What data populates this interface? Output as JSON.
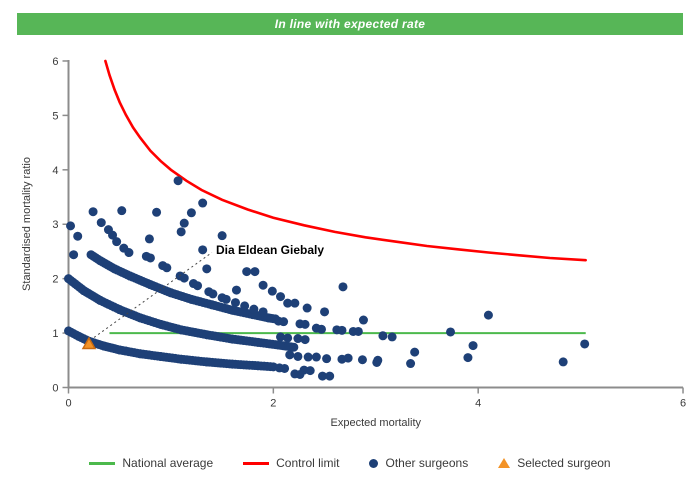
{
  "banner": {
    "text": "In line with expected rate",
    "bg_color": "#57B657"
  },
  "legend": {
    "items": [
      {
        "label": "National average",
        "swatch": "line",
        "color": "#4CB94C"
      },
      {
        "label": "Control limit",
        "swatch": "line",
        "color": "#FF0000"
      },
      {
        "label": "Other surgeons",
        "swatch": "dot",
        "color": "#1E4077"
      },
      {
        "label": "Selected surgeon",
        "swatch": "triangle",
        "color": "#F39327"
      }
    ]
  },
  "chart_data": {
    "type": "scatter",
    "title": "In line with expected rate",
    "xlabel": "Expected mortality",
    "ylabel": "Standardised mortality ratio",
    "xlim": [
      0,
      6
    ],
    "ylim": [
      0,
      6
    ],
    "xticks": [
      0,
      2,
      4,
      6
    ],
    "yticks": [
      0,
      1,
      2,
      3,
      4,
      5,
      6
    ],
    "grid": false,
    "axis_color": "#8C8C8C",
    "national_average": {
      "label": "National average",
      "y": 1,
      "x_start": 0.4,
      "x_end": 5.05,
      "color": "#4CB94C"
    },
    "control_limit": {
      "label": "Control limit",
      "color": "#FF0000",
      "points": [
        [
          0.36,
          6.0
        ],
        [
          0.4,
          5.74
        ],
        [
          0.45,
          5.47
        ],
        [
          0.5,
          5.24
        ],
        [
          0.56,
          5.01
        ],
        [
          0.63,
          4.78
        ],
        [
          0.7,
          4.59
        ],
        [
          0.8,
          4.35
        ],
        [
          0.9,
          4.16
        ],
        [
          1.0,
          4.0
        ],
        [
          1.15,
          3.8
        ],
        [
          1.3,
          3.63
        ],
        [
          1.5,
          3.45
        ],
        [
          1.75,
          3.27
        ],
        [
          2.0,
          3.12
        ],
        [
          2.3,
          2.98
        ],
        [
          2.6,
          2.86
        ],
        [
          2.9,
          2.76
        ],
        [
          3.2,
          2.68
        ],
        [
          3.5,
          2.6
        ],
        [
          3.8,
          2.54
        ],
        [
          4.1,
          2.48
        ],
        [
          4.4,
          2.43
        ],
        [
          4.7,
          2.38
        ],
        [
          5.05,
          2.34
        ]
      ]
    },
    "other_surgeons": {
      "label": "Other surgeons",
      "color": "#1E4077",
      "bands": [
        {
          "name": "band-1",
          "points": [
            [
              0.0,
              1.04
            ],
            [
              0.1,
              0.94
            ],
            [
              0.2,
              0.85
            ],
            [
              0.35,
              0.76
            ],
            [
              0.5,
              0.69
            ],
            [
              0.7,
              0.62
            ],
            [
              0.9,
              0.57
            ],
            [
              1.1,
              0.52
            ],
            [
              1.35,
              0.47
            ],
            [
              1.6,
              0.43
            ],
            [
              1.85,
              0.4
            ],
            [
              2.0,
              0.38
            ]
          ]
        },
        {
          "name": "band-2",
          "points": [
            [
              0.0,
              2.0
            ],
            [
              0.15,
              1.78
            ],
            [
              0.31,
              1.6
            ],
            [
              0.5,
              1.43
            ],
            [
              0.7,
              1.28
            ],
            [
              0.9,
              1.16
            ],
            [
              1.1,
              1.06
            ],
            [
              1.35,
              0.97
            ],
            [
              1.6,
              0.89
            ],
            [
              1.85,
              0.83
            ],
            [
              2.05,
              0.78
            ],
            [
              2.2,
              0.74
            ]
          ]
        },
        {
          "name": "band-3",
          "points": [
            [
              0.22,
              2.44
            ],
            [
              0.31,
              2.33
            ],
            [
              0.45,
              2.18
            ],
            [
              0.6,
              2.05
            ],
            [
              0.8,
              1.89
            ],
            [
              1.0,
              1.74
            ],
            [
              1.2,
              1.62
            ],
            [
              1.4,
              1.52
            ],
            [
              1.6,
              1.42
            ],
            [
              1.8,
              1.34
            ],
            [
              1.95,
              1.28
            ],
            [
              2.02,
              1.26
            ]
          ]
        }
      ],
      "dashed_band": [
        [
          0.39,
          2.9
        ],
        [
          0.43,
          2.8
        ],
        [
          0.47,
          2.68
        ],
        [
          0.54,
          2.56
        ],
        [
          0.59,
          2.48
        ],
        [
          0.76,
          2.41
        ],
        [
          0.8,
          2.38
        ],
        [
          0.92,
          2.24
        ],
        [
          0.96,
          2.2
        ],
        [
          1.09,
          2.05
        ],
        [
          1.13,
          2.01
        ],
        [
          1.22,
          1.91
        ],
        [
          1.26,
          1.87
        ],
        [
          1.37,
          1.76
        ],
        [
          1.41,
          1.72
        ],
        [
          1.5,
          1.65
        ],
        [
          1.54,
          1.62
        ],
        [
          1.63,
          1.56
        ],
        [
          1.72,
          1.5
        ],
        [
          1.81,
          1.44
        ],
        [
          1.9,
          1.39
        ]
      ],
      "scatter": [
        [
          0.02,
          2.97
        ],
        [
          0.09,
          2.78
        ],
        [
          0.05,
          2.44
        ],
        [
          0.24,
          3.23
        ],
        [
          0.32,
          3.03
        ],
        [
          0.52,
          3.25
        ],
        [
          0.86,
          3.22
        ],
        [
          1.07,
          3.8
        ],
        [
          1.31,
          3.39
        ],
        [
          1.2,
          3.21
        ],
        [
          1.13,
          3.02
        ],
        [
          1.1,
          2.86
        ],
        [
          1.5,
          2.79
        ],
        [
          0.79,
          2.73
        ],
        [
          1.31,
          2.53
        ],
        [
          1.35,
          2.18
        ],
        [
          1.64,
          1.79
        ],
        [
          1.74,
          2.13
        ],
        [
          1.82,
          2.13
        ],
        [
          1.9,
          1.88
        ],
        [
          1.99,
          1.77
        ],
        [
          2.07,
          1.67
        ],
        [
          2.14,
          1.55
        ],
        [
          2.21,
          1.55
        ],
        [
          2.33,
          1.46
        ],
        [
          2.5,
          1.39
        ],
        [
          2.68,
          1.85
        ],
        [
          2.88,
          1.24
        ],
        [
          2.05,
          1.22
        ],
        [
          2.1,
          1.21
        ],
        [
          2.26,
          1.17
        ],
        [
          2.31,
          1.16
        ],
        [
          2.42,
          1.09
        ],
        [
          2.47,
          1.07
        ],
        [
          2.62,
          1.06
        ],
        [
          2.67,
          1.05
        ],
        [
          2.78,
          1.03
        ],
        [
          2.83,
          1.03
        ],
        [
          3.07,
          0.95
        ],
        [
          3.16,
          0.93
        ],
        [
          3.73,
          1.02
        ],
        [
          4.1,
          1.33
        ],
        [
          3.95,
          0.77
        ],
        [
          3.9,
          0.55
        ],
        [
          3.38,
          0.65
        ],
        [
          3.34,
          0.44
        ],
        [
          3.01,
          0.46
        ],
        [
          4.83,
          0.47
        ],
        [
          5.04,
          0.8
        ],
        [
          2.07,
          0.93
        ],
        [
          2.14,
          0.91
        ],
        [
          2.24,
          0.9
        ],
        [
          2.31,
          0.88
        ],
        [
          2.16,
          0.6
        ],
        [
          2.24,
          0.57
        ],
        [
          2.34,
          0.56
        ],
        [
          2.42,
          0.56
        ],
        [
          2.52,
          0.53
        ],
        [
          2.67,
          0.52
        ],
        [
          2.73,
          0.54
        ],
        [
          2.87,
          0.51
        ],
        [
          3.02,
          0.5
        ],
        [
          2.06,
          0.36
        ],
        [
          2.11,
          0.35
        ],
        [
          2.3,
          0.32
        ],
        [
          2.36,
          0.31
        ],
        [
          2.21,
          0.25
        ],
        [
          2.26,
          0.24
        ],
        [
          2.48,
          0.21
        ],
        [
          2.55,
          0.21
        ]
      ]
    },
    "selected_surgeon": {
      "label": "Selected surgeon",
      "name": "Dia Eldean Giebaly",
      "x": 0.2,
      "y": 0.79,
      "fill": "#F39327",
      "stroke": "#C96A10"
    },
    "annotation": {
      "text": "Dia Eldean Giebaly",
      "text_x": 1.44,
      "text_y": 2.53,
      "line_from": [
        0.25,
        0.92
      ],
      "line_to": [
        1.4,
        2.48
      ],
      "line_color": "#444444"
    }
  }
}
